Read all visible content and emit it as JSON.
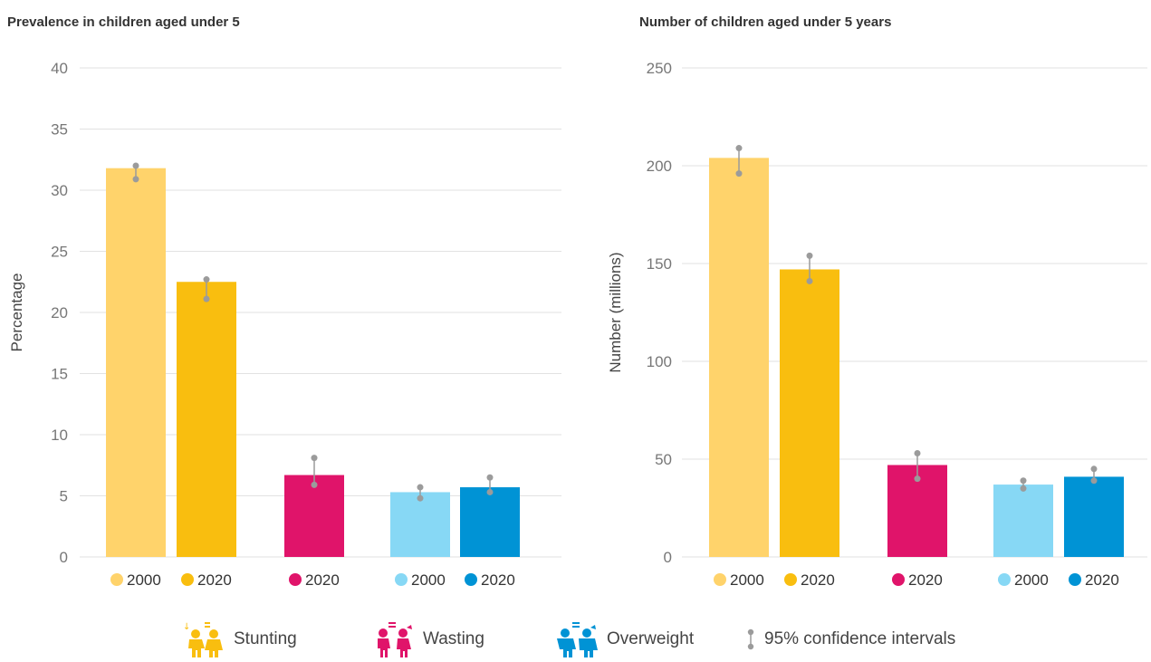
{
  "colors": {
    "stunting_2000": "#FFD36B",
    "stunting_2020": "#F9BE0F",
    "wasting_2020": "#E0146A",
    "overweight_2000": "#87D8F5",
    "overweight_2020": "#0093D5",
    "ci": "#9B9B9B",
    "grid": "#E2E2E2",
    "axis_text": "#777777"
  },
  "chart_data": [
    {
      "type": "bar",
      "title": "Prevalence in children aged under 5",
      "ylabel": "Percentage",
      "ylim": [
        0,
        40
      ],
      "yticks": [
        0,
        5,
        10,
        15,
        20,
        25,
        30,
        35,
        40
      ],
      "grid": true,
      "groups": [
        {
          "indicator": "Stunting",
          "bars": [
            {
              "year": "2000",
              "value": 31.8,
              "ci": [
                30.9,
                32.0
              ],
              "color_key": "stunting_2000"
            },
            {
              "year": "2020",
              "value": 22.5,
              "ci": [
                21.1,
                22.7
              ],
              "color_key": "stunting_2020"
            }
          ]
        },
        {
          "indicator": "Wasting",
          "bars": [
            {
              "year": "2020",
              "value": 6.7,
              "ci": [
                5.9,
                8.1
              ],
              "color_key": "wasting_2020"
            }
          ]
        },
        {
          "indicator": "Overweight",
          "bars": [
            {
              "year": "2000",
              "value": 5.3,
              "ci": [
                4.8,
                5.7
              ],
              "color_key": "overweight_2000"
            },
            {
              "year": "2020",
              "value": 5.7,
              "ci": [
                5.3,
                6.5
              ],
              "color_key": "overweight_2020"
            }
          ]
        }
      ]
    },
    {
      "type": "bar",
      "title": "Number of children aged under 5 years",
      "ylabel": "Number (millions)",
      "ylim": [
        0,
        250
      ],
      "yticks": [
        0,
        50,
        100,
        150,
        200,
        250
      ],
      "grid": true,
      "groups": [
        {
          "indicator": "Stunting",
          "bars": [
            {
              "year": "2000",
              "value": 204,
              "ci": [
                196,
                209
              ],
              "color_key": "stunting_2000"
            },
            {
              "year": "2020",
              "value": 147,
              "ci": [
                141,
                154
              ],
              "color_key": "stunting_2020"
            }
          ]
        },
        {
          "indicator": "Wasting",
          "bars": [
            {
              "year": "2020",
              "value": 47,
              "ci": [
                40,
                53
              ],
              "color_key": "wasting_2020"
            }
          ]
        },
        {
          "indicator": "Overweight",
          "bars": [
            {
              "year": "2000",
              "value": 37,
              "ci": [
                35,
                39
              ],
              "color_key": "overweight_2000"
            },
            {
              "year": "2020",
              "value": 41,
              "ci": [
                39,
                45
              ],
              "color_key": "overweight_2020"
            }
          ]
        }
      ]
    }
  ],
  "legend": {
    "stunting": "Stunting",
    "wasting": "Wasting",
    "overweight": "Overweight",
    "ci": "95% confidence intervals"
  }
}
